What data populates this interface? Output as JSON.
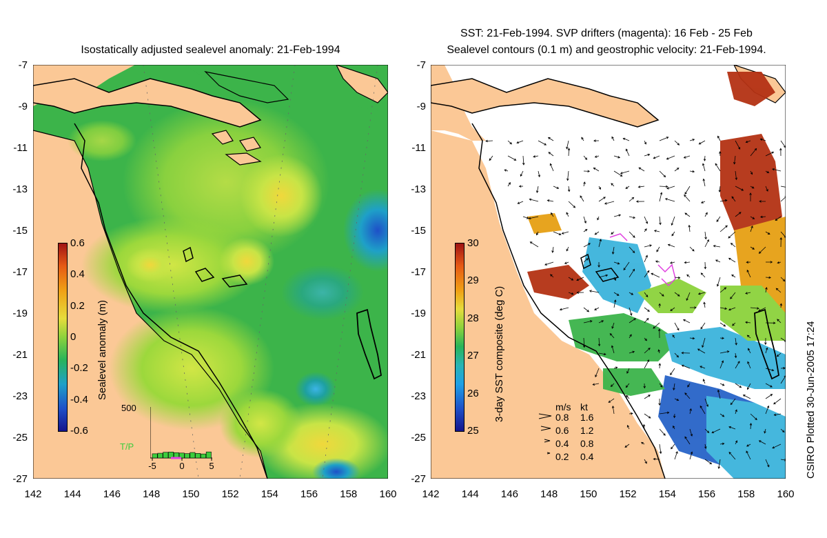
{
  "left_panel": {
    "title": "Isostatically adjusted sealevel anomaly: 21-Feb-1994",
    "colorbar": {
      "label": "Sealevel anomaly (m)",
      "ticks": [
        "0.6",
        "0.4",
        "0.2",
        "0",
        "-0.2",
        "-0.4",
        "-0.6"
      ]
    },
    "histogram": {
      "max_label": "500",
      "label": "T/P",
      "x_ticks": [
        "-5",
        "0",
        "5"
      ],
      "values": [
        80,
        110,
        160,
        175,
        140,
        120,
        90,
        150,
        100,
        70,
        180
      ]
    }
  },
  "right_panel": {
    "title_line1": "SST: 21-Feb-1994. SVP drifters (magenta): 16 Feb - 25 Feb",
    "title_line2": "Sealevel contours (0.1 m) and geostrophic velocity: 21-Feb-1994.",
    "colorbar": {
      "label": "3-day SST composite (deg C)",
      "ticks": [
        "30",
        "29",
        "28",
        "27",
        "26",
        "25"
      ]
    },
    "speed_legend": {
      "header_ms": "m/s",
      "header_kt": "kt",
      "rows": [
        {
          "ms": "0.8",
          "kt": "1.6"
        },
        {
          "ms": "0.6",
          "kt": "1.2"
        },
        {
          "ms": "0.4",
          "kt": "0.8"
        },
        {
          "ms": "0.2",
          "kt": "0.4"
        }
      ]
    }
  },
  "axes": {
    "y_ticks": [
      "-7",
      "-9",
      "-11",
      "-13",
      "-15",
      "-17",
      "-19",
      "-21",
      "-23",
      "-25",
      "-27"
    ],
    "x_ticks": [
      "142",
      "144",
      "146",
      "148",
      "150",
      "152",
      "154",
      "156",
      "158",
      "160"
    ]
  },
  "credit": "CSIRO Plotted 30-Jun-2005 17:24",
  "colors": {
    "land": "#fbc896",
    "sea_base": "#3cb44a",
    "sea_light": "#8cd23c",
    "sea_yellow": "#d2e646",
    "sea_cyan": "#1ea0a0",
    "sst_red": "#b43214",
    "sst_orange": "#e6a014",
    "sst_blue": "#2864c8",
    "sst_cyan": "#3cb4dc",
    "drifter": "#e040e0"
  }
}
